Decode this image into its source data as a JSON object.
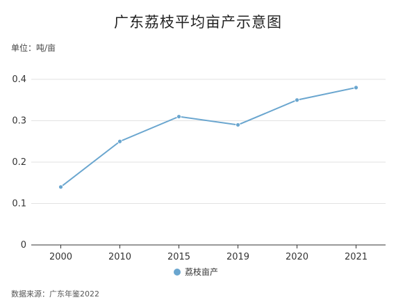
{
  "title": "广东荔枝平均亩产示意图",
  "unit_label": "单位：吨/亩",
  "source": "数据来源：广东年鉴2022",
  "colors": {
    "series": "#6aa6cf",
    "grid": "#e2e2e2",
    "axis": "#333333"
  },
  "chart_data": {
    "type": "line",
    "title": "广东荔枝平均亩产示意图",
    "categories": [
      "2000",
      "2010",
      "2015",
      "2019",
      "2020",
      "2021"
    ],
    "series": [
      {
        "name": "荔枝亩产",
        "values": [
          0.14,
          0.25,
          0.31,
          0.29,
          0.35,
          0.38
        ]
      }
    ],
    "yticks": [
      "0",
      "0.1",
      "0.2",
      "0.3",
      "0.4"
    ],
    "ylim": [
      0,
      0.4
    ],
    "grid": true,
    "legend": "bottom"
  }
}
